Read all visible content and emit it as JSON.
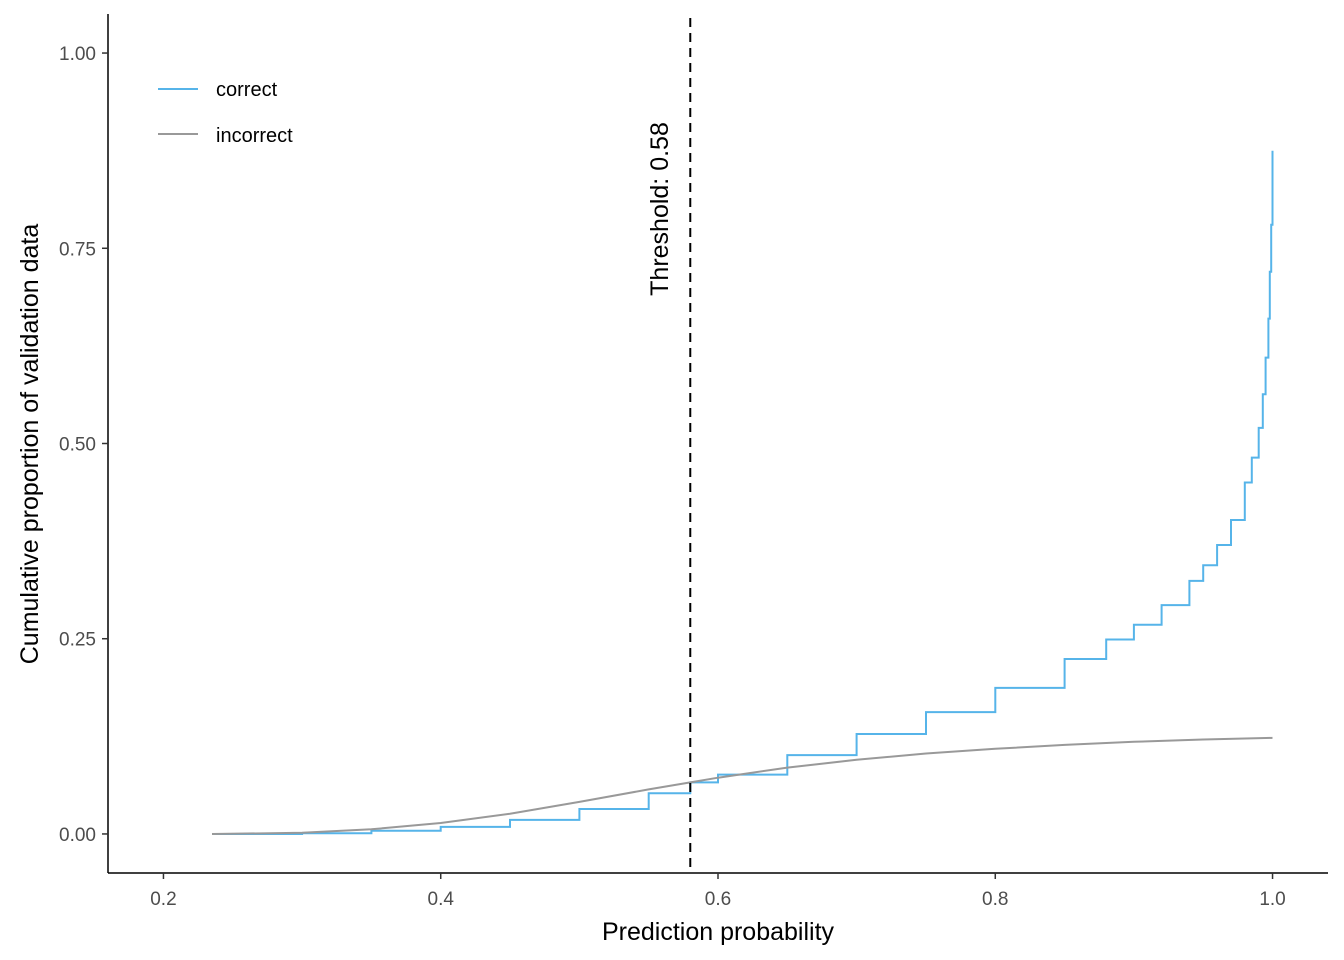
{
  "chart_data": {
    "type": "line",
    "title": "",
    "xlabel": "Prediction probability",
    "ylabel": "Cumulative proportion of validation data",
    "xlim": [
      0.16,
      1.04
    ],
    "ylim": [
      -0.05,
      1.05
    ],
    "x_ticks": [
      0.2,
      0.4,
      0.6,
      0.8,
      1.0
    ],
    "x_tick_labels": [
      "0.2",
      "0.4",
      "0.6",
      "0.8",
      "1.0"
    ],
    "y_ticks": [
      0,
      0.25,
      0.5,
      0.75,
      1.0
    ],
    "y_tick_labels": [
      "0.00",
      "0.25",
      "0.50",
      "0.75",
      "1.00"
    ],
    "grid": false,
    "legend_position": "top-left",
    "threshold": {
      "x": 0.58,
      "label": "Threshold: 0.58",
      "style": "dashed"
    },
    "series": [
      {
        "name": "correct",
        "color": "#56B4E9",
        "step": true,
        "x": [
          0.235,
          0.3,
          0.35,
          0.4,
          0.45,
          0.5,
          0.55,
          0.58,
          0.6,
          0.65,
          0.7,
          0.75,
          0.8,
          0.85,
          0.88,
          0.9,
          0.92,
          0.94,
          0.95,
          0.96,
          0.97,
          0.98,
          0.985,
          0.99,
          0.993,
          0.995,
          0.997,
          0.998,
          0.999,
          1.0,
          1.0
        ],
        "y": [
          0.0,
          0.001,
          0.004,
          0.009,
          0.018,
          0.032,
          0.052,
          0.066,
          0.076,
          0.101,
          0.128,
          0.156,
          0.187,
          0.224,
          0.249,
          0.268,
          0.293,
          0.324,
          0.344,
          0.37,
          0.402,
          0.45,
          0.482,
          0.52,
          0.563,
          0.61,
          0.66,
          0.72,
          0.78,
          0.83,
          0.875
        ]
      },
      {
        "name": "incorrect",
        "color": "#999999",
        "step": false,
        "x": [
          0.235,
          0.3,
          0.35,
          0.4,
          0.45,
          0.5,
          0.55,
          0.58,
          0.6,
          0.65,
          0.7,
          0.75,
          0.8,
          0.85,
          0.9,
          0.95,
          1.0
        ],
        "y": [
          0.0,
          0.0015,
          0.006,
          0.014,
          0.026,
          0.041,
          0.057,
          0.066,
          0.072,
          0.085,
          0.095,
          0.103,
          0.109,
          0.114,
          0.118,
          0.121,
          0.123
        ]
      }
    ]
  }
}
